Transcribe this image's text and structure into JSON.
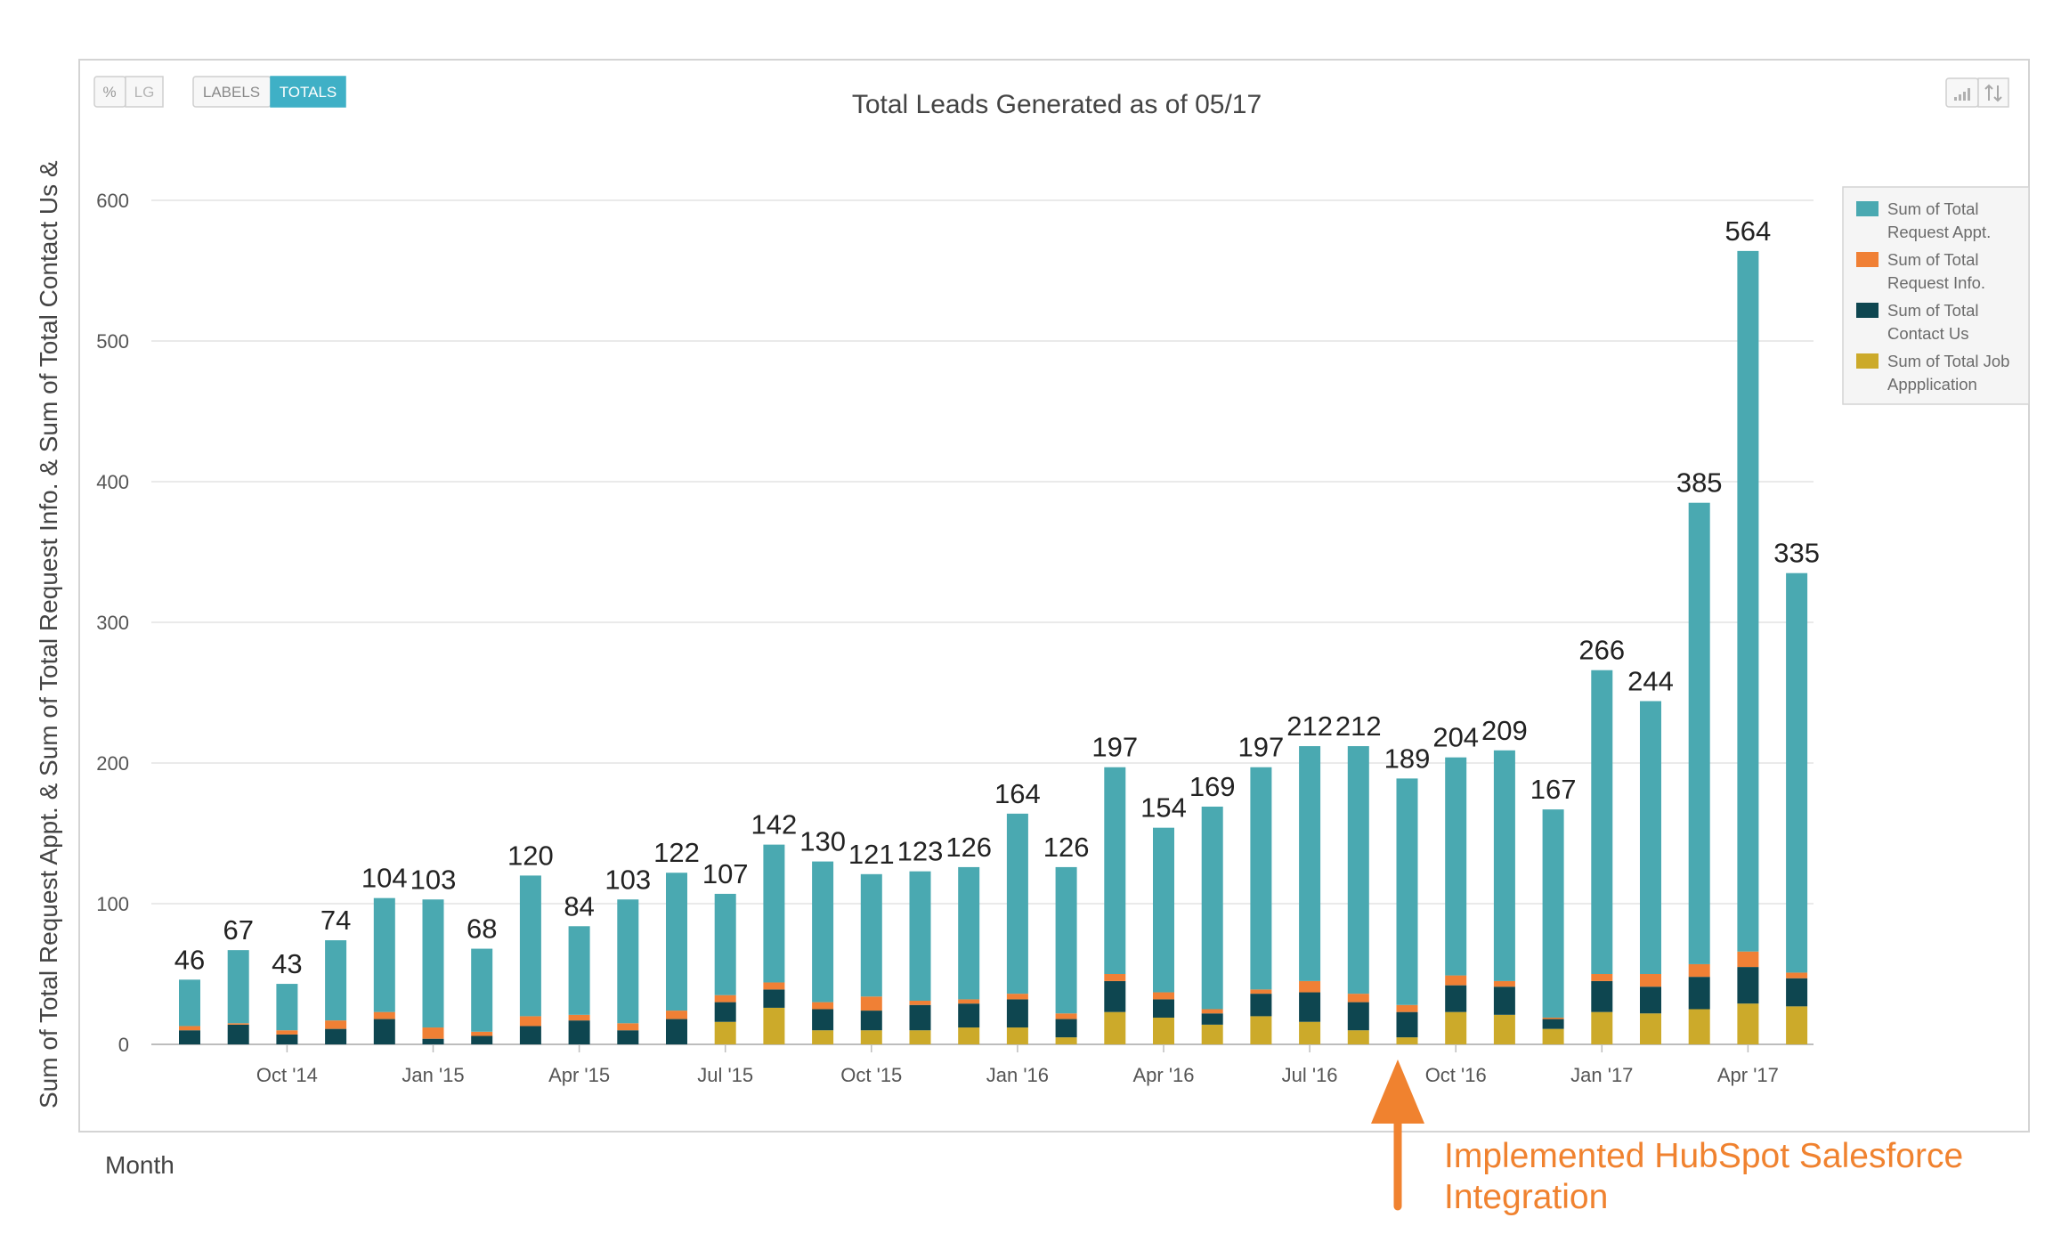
{
  "controls": {
    "percent_label": "%",
    "lg_label": "LG",
    "labels_label": "LABELS",
    "totals_label": "TOTALS"
  },
  "colors": {
    "request_appt": "#4aa9b1",
    "request_info": "#f08035",
    "contact_us": "#0e4650",
    "job_application": "#ccaa2a",
    "annotation": "#f0822f",
    "totals_button_bg": "#3fb0c6"
  },
  "icons": [
    "bar-chart-icon",
    "sort-icon",
    "annotation-arrow-icon"
  ],
  "chart_data": {
    "type": "bar",
    "stacked": true,
    "title": "Total Leads Generated as of 05/17",
    "xlabel": "Month",
    "ylabel": "Sum of Total Request Appt. & Sum of Total Request Info. & Sum of Total Contact Us &",
    "ylim": [
      0,
      600
    ],
    "yticks": [
      0,
      100,
      200,
      300,
      400,
      500,
      600
    ],
    "grid": true,
    "legend_position": "top-right",
    "x_tick_labels": [
      {
        "index": 2,
        "label": "Oct '14"
      },
      {
        "index": 5,
        "label": "Jan '15"
      },
      {
        "index": 8,
        "label": "Apr '15"
      },
      {
        "index": 11,
        "label": "Jul '15"
      },
      {
        "index": 14,
        "label": "Oct '15"
      },
      {
        "index": 17,
        "label": "Jan '16"
      },
      {
        "index": 20,
        "label": "Apr '16"
      },
      {
        "index": 23,
        "label": "Jul '16"
      },
      {
        "index": 26,
        "label": "Oct '16"
      },
      {
        "index": 29,
        "label": "Jan '17"
      },
      {
        "index": 32,
        "label": "Apr '17"
      }
    ],
    "totals": [
      46,
      67,
      43,
      74,
      104,
      103,
      68,
      120,
      84,
      103,
      122,
      107,
      142,
      130,
      121,
      123,
      126,
      164,
      126,
      197,
      154,
      169,
      197,
      212,
      212,
      189,
      204,
      209,
      167,
      266,
      244,
      385,
      564,
      335
    ],
    "series": [
      {
        "name": "Sum of Total Job Appplication",
        "legend_lines": [
          "Sum of Total Job",
          "Appplication"
        ],
        "values": [
          0,
          0,
          0,
          0,
          0,
          0,
          0,
          0,
          0,
          0,
          0,
          16,
          26,
          10,
          10,
          10,
          12,
          12,
          5,
          23,
          19,
          14,
          20,
          16,
          10,
          5,
          23,
          21,
          11,
          23,
          22,
          25,
          29,
          27
        ]
      },
      {
        "name": "Sum of Total Contact Us",
        "legend_lines": [
          "Sum of Total",
          "Contact Us"
        ],
        "values": [
          10,
          14,
          7,
          11,
          18,
          4,
          6,
          13,
          17,
          10,
          18,
          14,
          13,
          15,
          14,
          18,
          17,
          20,
          13,
          22,
          13,
          8,
          16,
          21,
          20,
          18,
          19,
          20,
          7,
          22,
          19,
          23,
          26,
          20
        ]
      },
      {
        "name": "Sum of Total Request Info.",
        "legend_lines": [
          "Sum of Total",
          "Request Info."
        ],
        "values": [
          3,
          1,
          3,
          6,
          5,
          8,
          3,
          7,
          4,
          5,
          6,
          5,
          5,
          5,
          10,
          3,
          3,
          4,
          4,
          5,
          5,
          3,
          3,
          8,
          6,
          5,
          7,
          4,
          1,
          5,
          9,
          9,
          11,
          4
        ]
      },
      {
        "name": "Sum of Total Request Appt.",
        "legend_lines": [
          "Sum of Total",
          "Request Appt."
        ],
        "values": [
          33,
          52,
          33,
          57,
          81,
          91,
          59,
          100,
          63,
          88,
          98,
          72,
          98,
          100,
          87,
          92,
          94,
          128,
          104,
          147,
          117,
          144,
          158,
          167,
          176,
          161,
          155,
          164,
          148,
          216,
          194,
          328,
          498,
          284
        ]
      }
    ]
  },
  "annotation": {
    "line1": "Implemented HubSpot Salesforce",
    "line2": "Integration"
  }
}
